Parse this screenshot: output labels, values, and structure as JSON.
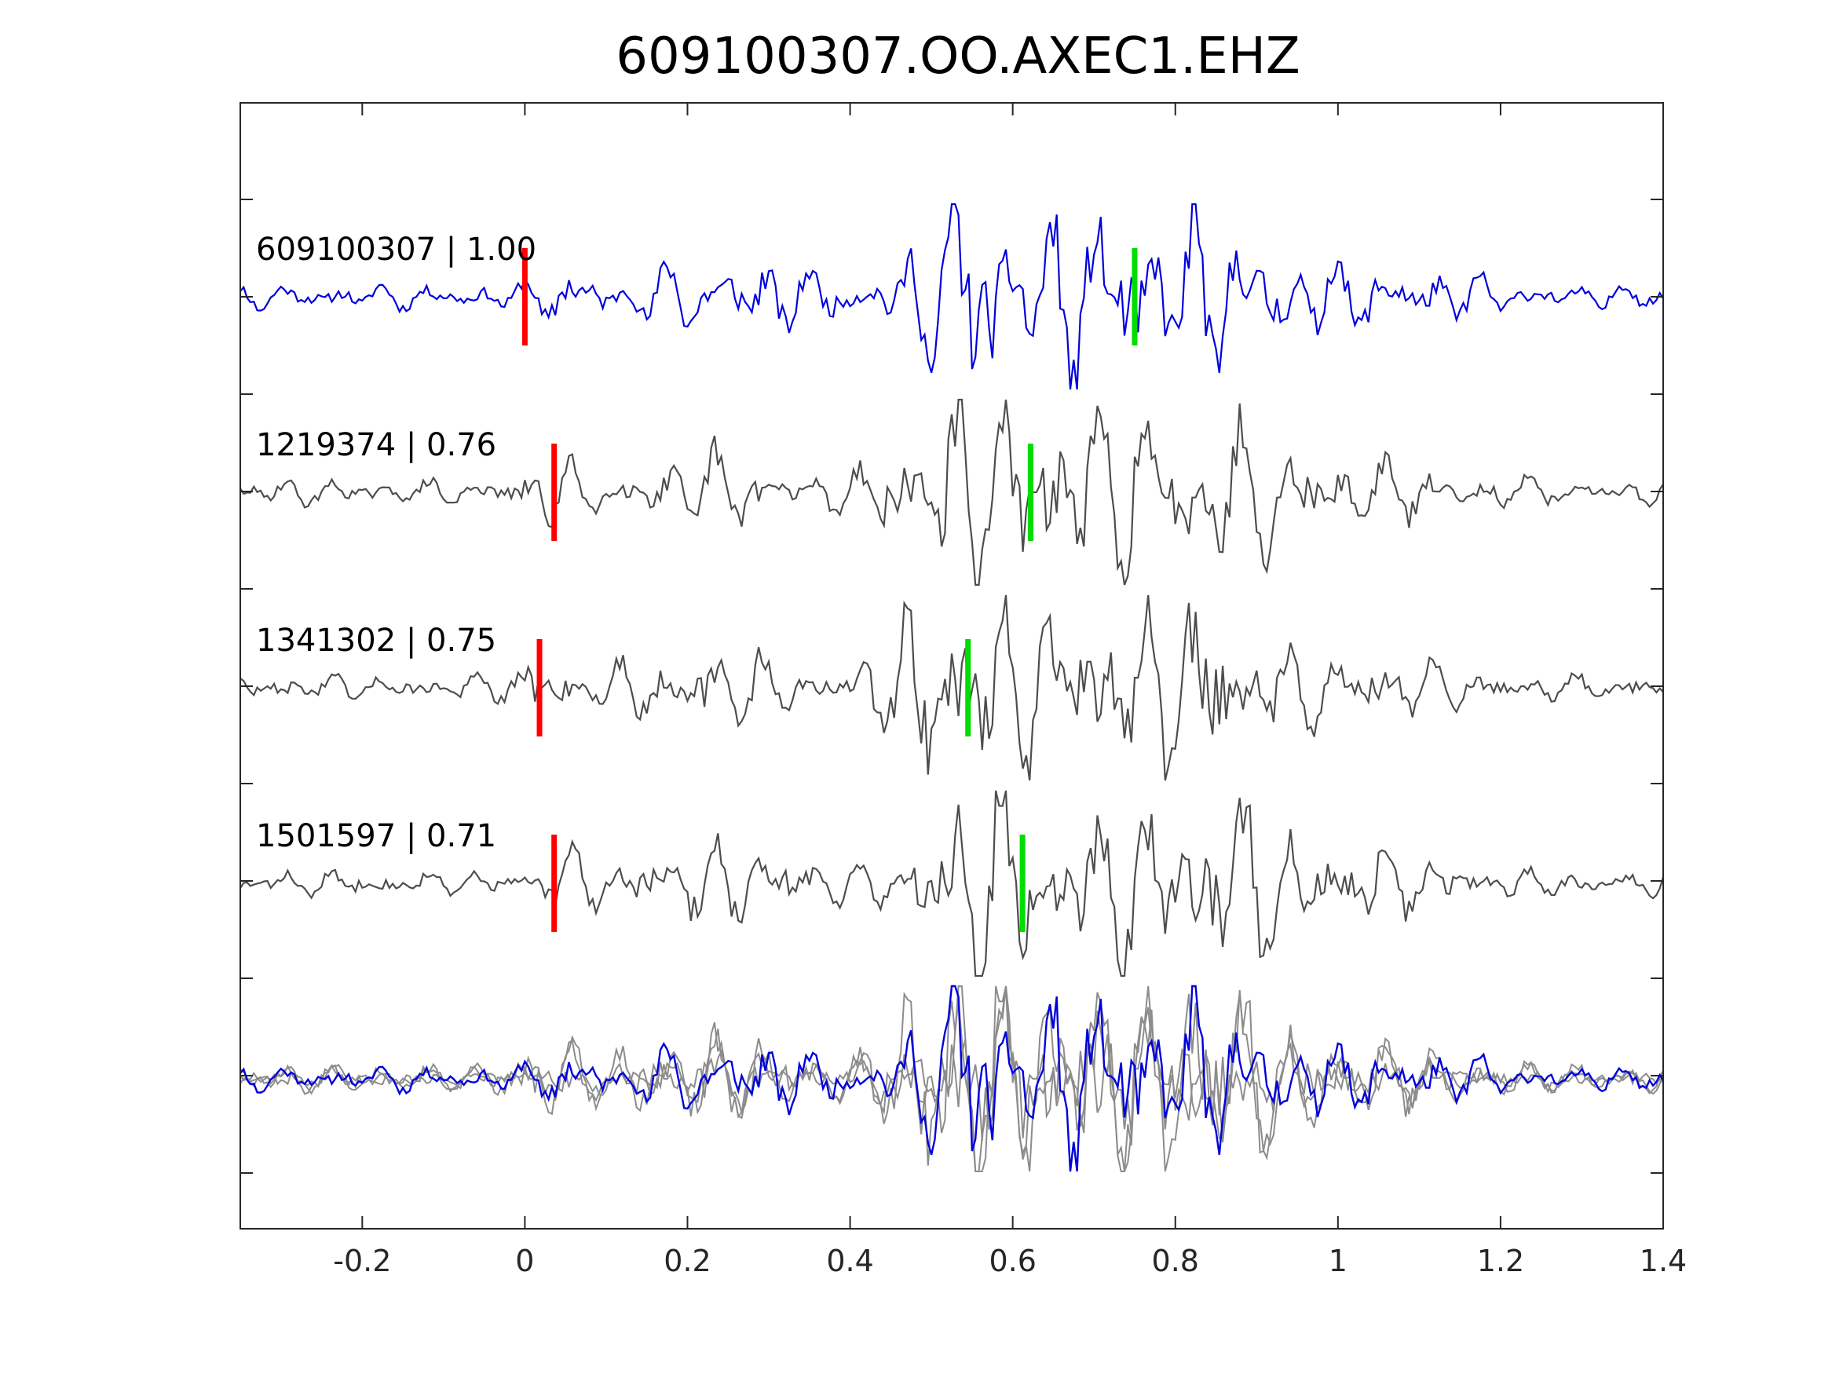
{
  "chart_data": {
    "type": "line",
    "title": "609100307.OO.AXEC1.EHZ",
    "xlabel": "",
    "ylabel": "",
    "xlim": [
      -0.35,
      1.4
    ],
    "x_ticks": [
      -0.2,
      0,
      0.2,
      0.4,
      0.6,
      0.8,
      1,
      1.2,
      1.4
    ],
    "x_tick_labels": [
      "-0.2",
      "0",
      "0.2",
      "0.4",
      "0.6",
      "0.8",
      "1",
      "1.2",
      "1.4"
    ],
    "grid": false,
    "colors": {
      "template": "#0000dd",
      "match": "#4d4d4d",
      "stack_match": "#8c8c8c",
      "p_pick": "#ff0000",
      "s_pick": "#00dd00",
      "axes": "#262626"
    },
    "series": [
      {
        "label": "609100307 | 1.00",
        "role": "template",
        "p_pick": 0.0,
        "s_pick": 0.75
      },
      {
        "label": "1219374 | 0.76",
        "role": "match",
        "p_pick": 0.036,
        "s_pick": 0.622
      },
      {
        "label": "1341302 | 0.75",
        "role": "match",
        "p_pick": 0.018,
        "s_pick": 0.545
      },
      {
        "label": "1501597 | 0.71",
        "role": "match",
        "p_pick": 0.036,
        "s_pick": 0.612
      }
    ],
    "overlay": {
      "description_role": "stack"
    }
  }
}
